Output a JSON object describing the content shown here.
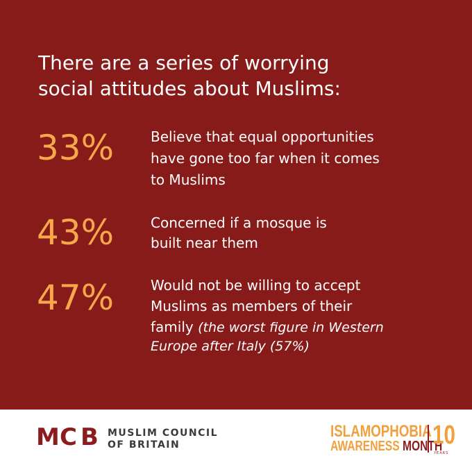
{
  "title": [
    "There are a series of worrying",
    "social attitudes about Muslims:"
  ],
  "stats": [
    {
      "figure": "33%",
      "text": [
        "Believe that equal opportunities",
        "have gone too far when it comes",
        "to Muslims"
      ]
    },
    {
      "figure": "43%",
      "text": [
        "Concerned if a mosque is",
        "built near them"
      ]
    },
    {
      "figure": "47%",
      "text": [
        "Would not be willing to accept",
        "Muslims as members of their",
        "family"
      ],
      "note": [
        "(the worst figure in Western",
        "Europe after Italy (57%)"
      ]
    }
  ],
  "footer": {
    "logo": {
      "letters": [
        "M",
        "C",
        "B"
      ],
      "name": [
        "MUSLIM COUNCIL",
        "OF BRITAIN"
      ]
    },
    "campaign": {
      "line1": "ISLAMOPHOBIA",
      "line2a": "AWARENESS",
      "line2b": "MONTH",
      "number": "10",
      "years": "YEARS"
    }
  }
}
